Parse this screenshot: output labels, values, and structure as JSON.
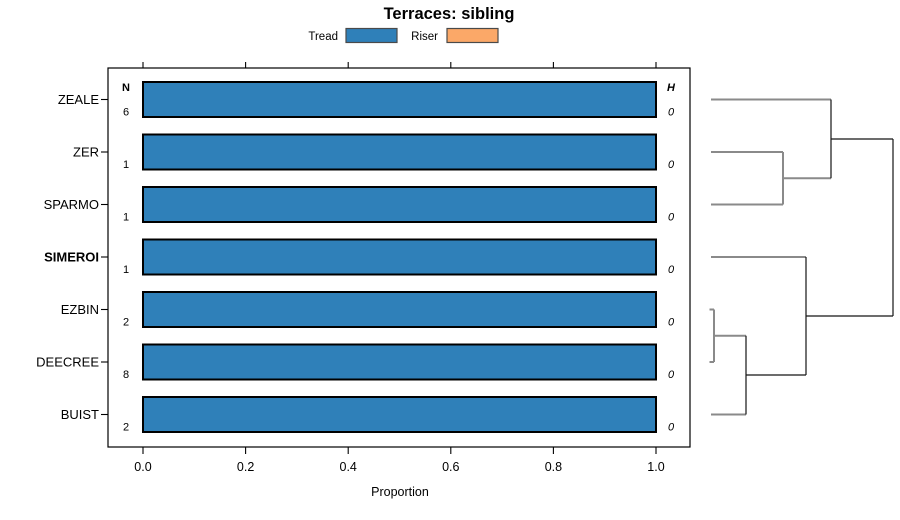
{
  "title": "Terraces: sibling",
  "legend": {
    "items": [
      {
        "label": "Tread",
        "color": "#2f80b9"
      },
      {
        "label": "Riser",
        "color": "#fba868"
      }
    ]
  },
  "columns": {
    "n_header": "N",
    "h_header": "H"
  },
  "x_axis": {
    "label": "Proportion",
    "ticks": [
      "0.0",
      "0.2",
      "0.4",
      "0.6",
      "0.8",
      "1.0"
    ]
  },
  "chart_data": {
    "type": "bar",
    "orientation": "horizontal-stacked",
    "title": "Terraces: sibling",
    "xlabel": "Proportion",
    "xlim": [
      0,
      1
    ],
    "x_ticks": [
      0.0,
      0.2,
      0.4,
      0.6,
      0.8,
      1.0
    ],
    "legend_position": "top",
    "series_names": [
      "Tread",
      "Riser"
    ],
    "colors": {
      "tread": "#2f80b9",
      "riser": "#fba868"
    },
    "rows": [
      {
        "label": "ZEALE",
        "n": 6,
        "values": {
          "Tread": 1.0,
          "Riser": 0.0
        },
        "h": 0,
        "emphasis": false
      },
      {
        "label": "ZER",
        "n": 1,
        "values": {
          "Tread": 1.0,
          "Riser": 0.0
        },
        "h": 0,
        "emphasis": false
      },
      {
        "label": "SPARMO",
        "n": 1,
        "values": {
          "Tread": 1.0,
          "Riser": 0.0
        },
        "h": 0,
        "emphasis": false
      },
      {
        "label": "SIMEROI",
        "n": 1,
        "values": {
          "Tread": 1.0,
          "Riser": 0.0
        },
        "h": 0,
        "emphasis": true
      },
      {
        "label": "EZBIN",
        "n": 2,
        "values": {
          "Tread": 1.0,
          "Riser": 0.0
        },
        "h": 0,
        "emphasis": false
      },
      {
        "label": "DEECREE",
        "n": 8,
        "values": {
          "Tread": 1.0,
          "Riser": 0.0
        },
        "h": 0,
        "emphasis": false
      },
      {
        "label": "BUIST",
        "n": 2,
        "values": {
          "Tread": 1.0,
          "Riser": 0.0
        },
        "h": 0,
        "emphasis": false
      }
    ],
    "dendrogram": {
      "side": "right",
      "leaf_order": [
        "ZEALE",
        "ZER",
        "SPARMO",
        "SIMEROI",
        "EZBIN",
        "DEECREE",
        "BUIST"
      ],
      "topology": "((ZEALE,(ZER,SPARMO)),(SIMEROI,((EZBIN,DEECREE),BUIST)))"
    }
  }
}
